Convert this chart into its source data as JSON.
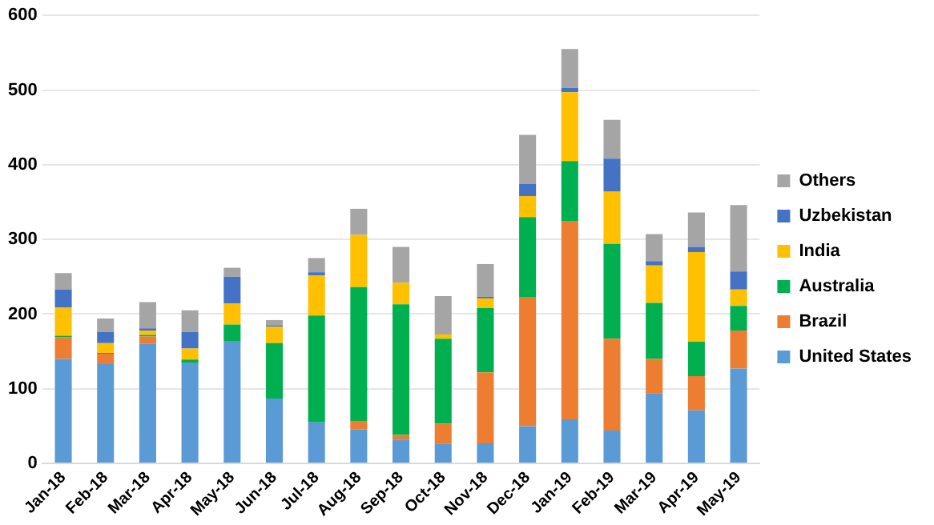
{
  "chart_data": {
    "type": "bar",
    "stacked": true,
    "categories": [
      "Jan-18",
      "Feb-18",
      "Mar-18",
      "Apr-18",
      "May-18",
      "Jun-18",
      "Jul-18",
      "Aug-18",
      "Sep-18",
      "Oct-18",
      "Nov-18",
      "Dec-18",
      "Jan-19",
      "Feb-19",
      "Mar-19",
      "Apr-19",
      "May-19"
    ],
    "series": [
      {
        "name": "United States",
        "color": "#5b9bd5",
        "values": [
          140,
          133,
          160,
          135,
          164,
          87,
          55,
          46,
          32,
          26,
          27,
          50,
          59,
          44,
          94,
          71,
          127
        ]
      },
      {
        "name": "Brazil",
        "color": "#ed7d31",
        "values": [
          29,
          14,
          10,
          0,
          0,
          0,
          0,
          11,
          6,
          27,
          95,
          173,
          265,
          123,
          46,
          46,
          51
        ]
      },
      {
        "name": "Australia",
        "color": "#00b050",
        "values": [
          2,
          1,
          2,
          4,
          22,
          74,
          143,
          179,
          175,
          114,
          86,
          107,
          81,
          127,
          75,
          46,
          33
        ]
      },
      {
        "name": "India",
        "color": "#ffc000",
        "values": [
          38,
          13,
          6,
          15,
          28,
          22,
          54,
          70,
          29,
          6,
          13,
          28,
          92,
          70,
          50,
          120,
          22
        ]
      },
      {
        "name": "Uzbekistan",
        "color": "#4472c4",
        "values": [
          24,
          15,
          3,
          22,
          36,
          2,
          4,
          0,
          0,
          1,
          2,
          16,
          6,
          44,
          6,
          7,
          24
        ]
      },
      {
        "name": "Others",
        "color": "#a5a5a5",
        "values": [
          22,
          18,
          35,
          29,
          12,
          7,
          19,
          35,
          48,
          50,
          44,
          66,
          52,
          52,
          36,
          46,
          89
        ]
      }
    ],
    "ylim": [
      0,
      600
    ],
    "yticks": [
      0,
      100,
      200,
      300,
      400,
      500,
      600
    ],
    "grid": "y",
    "legend": "right"
  }
}
